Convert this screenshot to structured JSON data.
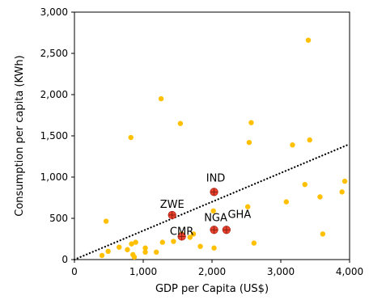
{
  "chart_data": {
    "type": "scatter",
    "xlabel": "GDP per Capita (US$)",
    "ylabel": "Consumption per capita (KWh)",
    "xlim": [
      0,
      4000
    ],
    "ylim": [
      0,
      3000
    ],
    "x_ticks": [
      "0",
      "1,000",
      "2,000",
      "3,000",
      "4,000"
    ],
    "x_tick_values": [
      0,
      1000,
      2000,
      3000,
      4000
    ],
    "y_ticks": [
      "0",
      "500",
      "1,000",
      "1,500",
      "2,000",
      "2,500",
      "3,000"
    ],
    "y_tick_values": [
      0,
      500,
      1000,
      1500,
      2000,
      2500,
      3000
    ],
    "grid": false,
    "colors": {
      "points": "#FFC000",
      "highlight": "#E8412C",
      "trendline": "#000000"
    },
    "series": [
      {
        "points": [
          {
            "x": 400,
            "y": 50
          },
          {
            "x": 460,
            "y": 465
          },
          {
            "x": 490,
            "y": 100
          },
          {
            "x": 650,
            "y": 150
          },
          {
            "x": 770,
            "y": 120
          },
          {
            "x": 820,
            "y": 1480
          },
          {
            "x": 830,
            "y": 190
          },
          {
            "x": 850,
            "y": 60
          },
          {
            "x": 870,
            "y": 30
          },
          {
            "x": 890,
            "y": 210
          },
          {
            "x": 1030,
            "y": 140
          },
          {
            "x": 1030,
            "y": 90
          },
          {
            "x": 1190,
            "y": 90
          },
          {
            "x": 1260,
            "y": 1950
          },
          {
            "x": 1280,
            "y": 210
          },
          {
            "x": 1440,
            "y": 220
          },
          {
            "x": 1540,
            "y": 1650
          },
          {
            "x": 1560,
            "y": 310
          },
          {
            "x": 1680,
            "y": 270
          },
          {
            "x": 1730,
            "y": 310
          },
          {
            "x": 1830,
            "y": 160
          },
          {
            "x": 2020,
            "y": 590
          },
          {
            "x": 2030,
            "y": 140
          },
          {
            "x": 2520,
            "y": 640
          },
          {
            "x": 2540,
            "y": 1420
          },
          {
            "x": 2570,
            "y": 1660
          },
          {
            "x": 2610,
            "y": 200
          },
          {
            "x": 3080,
            "y": 700
          },
          {
            "x": 3170,
            "y": 1390
          },
          {
            "x": 3350,
            "y": 910
          },
          {
            "x": 3400,
            "y": 2660
          },
          {
            "x": 3420,
            "y": 1450
          },
          {
            "x": 3570,
            "y": 760
          },
          {
            "x": 3610,
            "y": 310
          },
          {
            "x": 3890,
            "y": 820
          },
          {
            "x": 3930,
            "y": 950
          }
        ]
      },
      {
        "points": [
          {
            "x": 1420,
            "y": 540,
            "label": "ZWE"
          },
          {
            "x": 1560,
            "y": 280,
            "label": "CMR"
          },
          {
            "x": 2030,
            "y": 820,
            "label": "IND"
          },
          {
            "x": 2030,
            "y": 360,
            "label": "NGA"
          },
          {
            "x": 2210,
            "y": 360,
            "label": "GHA"
          }
        ]
      }
    ],
    "trendline": {
      "style": "dotted",
      "from": {
        "x": 0,
        "y": 0
      },
      "to": {
        "x": 4000,
        "y": 1400
      }
    }
  }
}
